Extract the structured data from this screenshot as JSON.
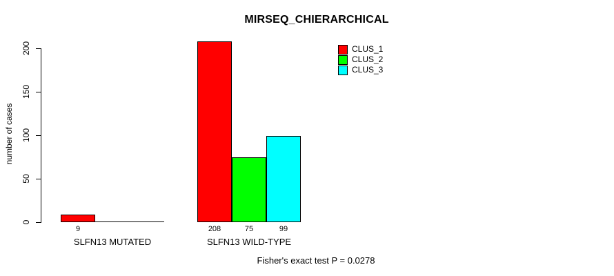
{
  "chart_data": {
    "type": "bar",
    "title": "MIRSEQ_CHIERARCHICAL",
    "xlabel": "",
    "ylabel": "number of cases",
    "ylim": [
      0,
      200
    ],
    "yticks": [
      0,
      50,
      100,
      150,
      200
    ],
    "grid": false,
    "legend_position": "top-right",
    "categories": [
      "SLFN13 MUTATED",
      "SLFN13 WILD-TYPE"
    ],
    "series": [
      {
        "name": "CLUS_1",
        "color": "#FF0000",
        "values": [
          9,
          208
        ]
      },
      {
        "name": "CLUS_2",
        "color": "#00FF00",
        "values": [
          0,
          75
        ]
      },
      {
        "name": "CLUS_3",
        "color": "#00FFFF",
        "values": [
          0,
          99
        ]
      }
    ],
    "bar_value_labels": [
      "9",
      "208",
      "75",
      "99"
    ],
    "annotation": "Fisher's exact test P = 0.0278"
  }
}
